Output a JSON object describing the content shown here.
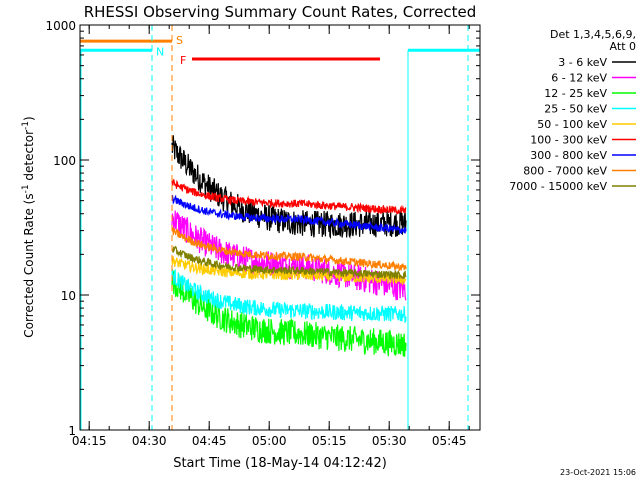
{
  "chart_data": {
    "type": "line",
    "title": "RHESSI Observing Summary Count Rates, Corrected",
    "xlabel": "Start Time (18-May-14 04:12:42)",
    "ylabel_main": "Corrected Count Rate (s",
    "ylabel_sup1": "-1",
    "ylabel_mid": " detector",
    "ylabel_sup2": "-1",
    "ylabel_end": ")",
    "yscale": "log",
    "ylim": [
      1,
      1000
    ],
    "x_range_min": [
      0,
      100
    ],
    "x_ticks": [
      {
        "min": 2.3,
        "label": "04:15"
      },
      {
        "min": 17.3,
        "label": "04:30"
      },
      {
        "min": 32.3,
        "label": "04:45"
      },
      {
        "min": 47.3,
        "label": "05:00"
      },
      {
        "min": 62.3,
        "label": "05:15"
      },
      {
        "min": 77.3,
        "label": "05:30"
      },
      {
        "min": 92.3,
        "label": "05:45"
      }
    ],
    "y_ticks": [
      {
        "value": 1,
        "label": "1"
      },
      {
        "value": 10,
        "label": "10"
      },
      {
        "value": 100,
        "label": "100"
      },
      {
        "value": 1000,
        "label": "1000"
      }
    ],
    "legend_header": [
      "Det 1,3,4,5,6,9,",
      "Att 0"
    ],
    "data_start_min": 23,
    "data_end_min": 81.5,
    "series": [
      {
        "name": "3 - 6 keV",
        "color": "#000000",
        "start": 125,
        "level": 32,
        "end": 34,
        "noise": 0.1
      },
      {
        "name": "6 - 12 keV",
        "color": "#ff00ff",
        "start": 38,
        "level": 16,
        "end": 11,
        "noise": 0.1
      },
      {
        "name": "12 - 25 keV",
        "color": "#00ff00",
        "start": 13,
        "level": 5,
        "end": 4.3,
        "noise": 0.1
      },
      {
        "name": "25 - 50 keV",
        "color": "#00ffff",
        "start": 14,
        "level": 7.5,
        "end": 7.2,
        "noise": 0.06
      },
      {
        "name": "50 - 100 keV",
        "color": "#ffcc00",
        "start": 18,
        "level": 14,
        "end": 13,
        "noise": 0.04
      },
      {
        "name": "100 - 300 keV",
        "color": "#ff0000",
        "start": 68,
        "level": 47,
        "end": 42,
        "noise": 0.03
      },
      {
        "name": "300 - 800 keV",
        "color": "#0000ff",
        "start": 52,
        "level": 36,
        "end": 30,
        "noise": 0.03
      },
      {
        "name": "800 - 7000 keV",
        "color": "#ff8000",
        "start": 30,
        "level": 19,
        "end": 16,
        "noise": 0.03
      },
      {
        "name": "7000 - 15000 keV",
        "color": "#808000",
        "start": 22,
        "level": 15,
        "end": 14,
        "noise": 0.03
      }
    ],
    "annotations": [
      {
        "label": "S",
        "color": "#ff8000",
        "bar_from_min": 0,
        "bar_to_min": 23,
        "value": 760,
        "vline_min": 23
      },
      {
        "label": "N",
        "color": "#00ffff",
        "bar_from_min": 0,
        "bar_to_min": 18,
        "value": 650,
        "vline_min": 18
      },
      {
        "label": "F",
        "color": "#ff0000",
        "bar_from_min": 28,
        "bar_to_min": 75,
        "value": 560
      },
      {
        "label": "",
        "color": "#00ffff",
        "bar_from_min": 82,
        "bar_to_min": 100,
        "value": 650,
        "vline_min": 97
      }
    ],
    "footer_date": "23-Oct-2021 15:06"
  }
}
